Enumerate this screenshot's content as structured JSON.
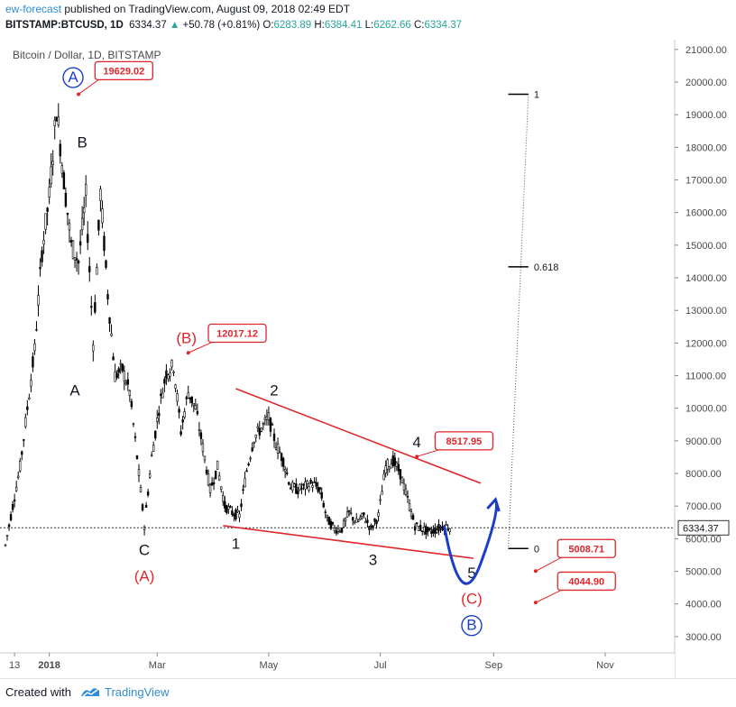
{
  "header": {
    "author": "ew-forecast",
    "published_text": "published on TradingView.com, August 09, 2018 02:49 EDT",
    "symbol": "BITSTAMP:BTCUSD, 1D",
    "last": "6334.37",
    "change": "+50.78 (+0.81%)",
    "ohlc_labels": [
      "O:",
      "H:",
      "L:",
      "C:"
    ],
    "ohlc_values": [
      "6283.89",
      "6384.41",
      "6262.66",
      "6334.37"
    ]
  },
  "footer": {
    "created_with": "Created with",
    "brand": "TradingView"
  },
  "colors": {
    "red": "#e0262a",
    "blue": "#1a3ec8",
    "green": "#26a69a",
    "candle": "#000000",
    "grid": "#e6e6e6"
  },
  "chart_data": {
    "type": "candlestick",
    "title": "Bitcoin / Dollar, 1D, BITSTAMP",
    "y_axis": {
      "ticks": [
        "21000.00",
        "20000.00",
        "19000.00",
        "18000.00",
        "17000.00",
        "16000.00",
        "15000.00",
        "14000.00",
        "13000.00",
        "12000.00",
        "11000.00",
        "10000.00",
        "9000.00",
        "8000.00",
        "7000.00",
        "6000.00",
        "5000.00",
        "4000.00",
        "3000.00"
      ],
      "ylim": [
        2500,
        21300
      ],
      "current_price": "6334.37"
    },
    "x_axis": {
      "labels": [
        "13",
        "2018",
        "Mar",
        "May",
        "Jul",
        "Sep",
        "Nov"
      ],
      "bold": [
        false,
        true,
        false,
        false,
        false,
        false,
        false
      ],
      "domain_days": [
        -24,
        342
      ],
      "label_days": [
        -19,
        0,
        59,
        120,
        181,
        243,
        304
      ]
    },
    "series": [
      {
        "name": "BTCUSD daily (approximate)",
        "x_days": [
          -24,
          -20,
          -16,
          -12,
          -8,
          -4,
          0,
          4,
          8,
          12,
          16,
          20,
          24,
          28,
          32,
          36,
          40,
          44,
          48,
          52,
          56,
          60,
          64,
          68,
          72,
          76,
          80,
          84,
          88,
          92,
          96,
          100,
          104,
          108,
          112,
          116,
          120,
          124,
          128,
          132,
          136,
          140,
          144,
          148,
          152,
          156,
          160,
          164,
          168,
          172,
          176,
          180,
          184,
          188,
          192,
          196,
          200,
          204,
          208,
          212,
          216,
          220
        ],
        "close": [
          5800,
          7000,
          8200,
          10000,
          11800,
          14800,
          16500,
          19200,
          17000,
          15000,
          14500,
          16500,
          12000,
          16600,
          13500,
          11000,
          11200,
          10500,
          8500,
          6400,
          8500,
          10000,
          11100,
          11300,
          9300,
          10500,
          10000,
          8800,
          7500,
          8200,
          7000,
          6800,
          6700,
          8100,
          9100,
          9400,
          9700,
          8900,
          8400,
          7600,
          7500,
          7600,
          7700,
          7500,
          6600,
          6300,
          6300,
          6800,
          6500,
          6700,
          6300,
          6700,
          8200,
          8400,
          8000,
          7200,
          6400,
          6300,
          6200,
          6300,
          6400,
          6334
        ]
      }
    ],
    "annotations": {
      "wave_labels": [
        {
          "text": "A",
          "day": 13,
          "price": 20000,
          "style": "circle-blue"
        },
        {
          "text": "B",
          "day": 18,
          "price": 18000,
          "style": "black"
        },
        {
          "text": "A",
          "day": 14,
          "price": 10400,
          "style": "black"
        },
        {
          "text": "C",
          "day": 52,
          "price": 5500,
          "style": "black"
        },
        {
          "text": "(A)",
          "day": 52,
          "price": 4700,
          "style": "red"
        },
        {
          "text": "(B)",
          "day": 75,
          "price": 12000,
          "style": "red"
        },
        {
          "text": "1",
          "day": 102,
          "price": 5700,
          "style": "black"
        },
        {
          "text": "2",
          "day": 123,
          "price": 10400,
          "style": "black"
        },
        {
          "text": "3",
          "day": 177,
          "price": 5200,
          "style": "black"
        },
        {
          "text": "4",
          "day": 201,
          "price": 8800,
          "style": "black"
        },
        {
          "text": "5",
          "day": 231,
          "price": 4800,
          "style": "black"
        },
        {
          "text": "(C)",
          "day": 231,
          "price": 4000,
          "style": "red"
        },
        {
          "text": "B",
          "day": 231,
          "price": 3200,
          "style": "circle-blue"
        }
      ],
      "price_boxes": [
        {
          "text": "19629.02",
          "day": 16,
          "price": 19629,
          "box_day": 25,
          "box_price": 20350
        },
        {
          "text": "12017.12",
          "day": 76,
          "price": 11700,
          "box_day": 87,
          "box_price": 12300
        },
        {
          "text": "8517.95",
          "day": 201,
          "price": 8518,
          "box_day": 211,
          "box_price": 9000
        },
        {
          "text": "5008.71",
          "day": 266,
          "price": 5008,
          "box_day": 278,
          "box_price": 5700
        },
        {
          "text": "4044.90",
          "day": 266,
          "price": 4045,
          "box_day": 278,
          "box_price": 4700
        }
      ],
      "trendlines": [
        {
          "from": [
            102,
            10600
          ],
          "to": [
            236,
            7700
          ],
          "color": "red"
        },
        {
          "from": [
            95,
            6400
          ],
          "to": [
            232,
            5400
          ],
          "color": "red"
        }
      ],
      "fib_levels": [
        {
          "label": "1",
          "price": 19629
        },
        {
          "label": "0.618",
          "price": 14335
        },
        {
          "label": "0",
          "price": 5700
        }
      ],
      "projection": {
        "color": "blue",
        "from": [
          216,
          6400
        ],
        "to": [
          244,
          7200
        ]
      }
    }
  }
}
